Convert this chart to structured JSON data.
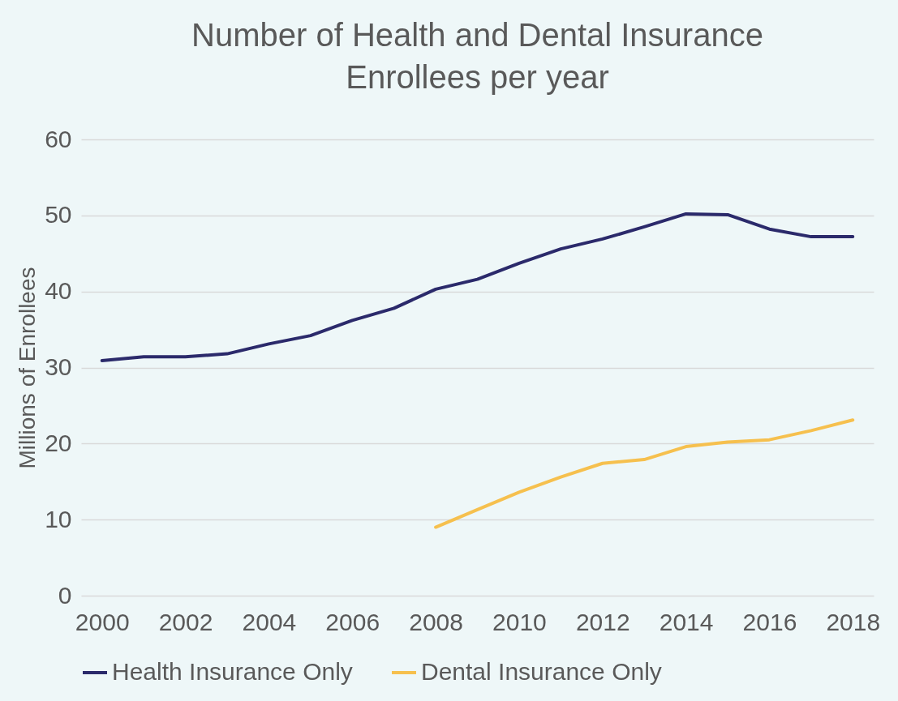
{
  "chart_data": {
    "type": "line",
    "title": "Number of Health and Dental Insurance\nEnrollees per year",
    "ylabel": "Millions of Enrollees",
    "x": [
      2000,
      2001,
      2002,
      2003,
      2004,
      2005,
      2006,
      2007,
      2008,
      2009,
      2010,
      2011,
      2012,
      2013,
      2014,
      2015,
      2016,
      2017,
      2018
    ],
    "series": [
      {
        "name": "Health Insurance Only",
        "color": "#2b2a6b",
        "values": [
          30.9,
          31.4,
          31.4,
          31.8,
          33.1,
          34.2,
          36.2,
          37.8,
          40.3,
          41.6,
          43.7,
          45.6,
          46.9,
          48.5,
          50.2,
          50.1,
          48.2,
          47.2,
          47.2
        ]
      },
      {
        "name": "Dental Insurance Only",
        "color": "#f6c04e",
        "x": [
          2008,
          2009,
          2010,
          2011,
          2012,
          2013,
          2014,
          2015,
          2016,
          2017,
          2018
        ],
        "values": [
          9.0,
          11.3,
          13.6,
          15.6,
          17.4,
          17.9,
          19.6,
          20.2,
          20.5,
          21.7,
          23.1
        ]
      }
    ],
    "xlim": [
      1999.5,
      2018.5
    ],
    "xticks": [
      2000,
      2002,
      2004,
      2006,
      2008,
      2010,
      2012,
      2014,
      2016,
      2018
    ],
    "ylim": [
      0,
      60
    ],
    "yticks": [
      0,
      10,
      20,
      30,
      40,
      50,
      60
    ],
    "grid": "y",
    "legend": "bottom",
    "line_style": "solid",
    "marker": "none"
  }
}
